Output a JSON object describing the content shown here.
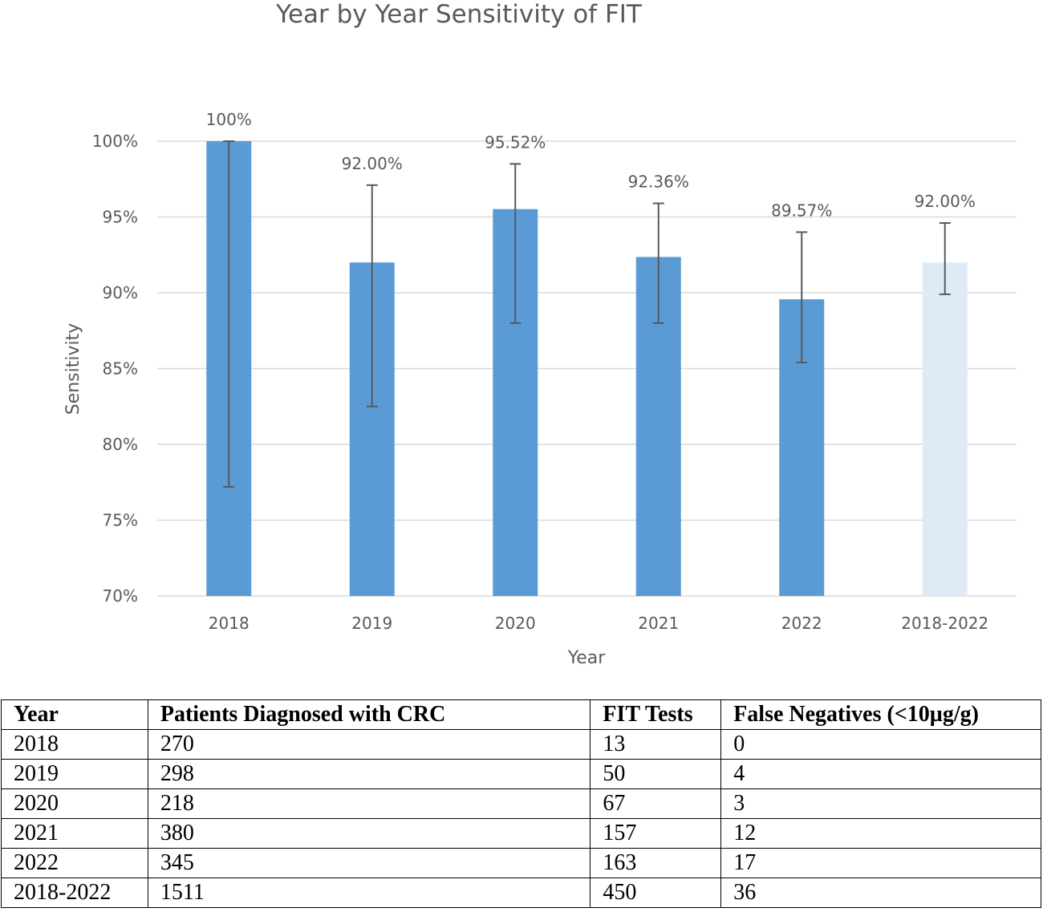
{
  "chart_data": {
    "type": "bar",
    "title": "Year by Year Sensitivity of FIT",
    "xlabel": "Year",
    "ylabel": "Sensitivity",
    "ylim": [
      70,
      100
    ],
    "yticks": [
      70,
      75,
      80,
      85,
      90,
      95,
      100
    ],
    "ytick_labels": [
      "70%",
      "75%",
      "80%",
      "85%",
      "90%",
      "95%",
      "100%"
    ],
    "grid": true,
    "categories": [
      "2018",
      "2019",
      "2020",
      "2021",
      "2022",
      "2018-2022"
    ],
    "values": [
      100,
      92.0,
      95.52,
      92.36,
      89.57,
      92.0
    ],
    "data_labels": [
      "100%",
      "92.00%",
      "95.52%",
      "92.36%",
      "89.57%",
      "92.00%"
    ],
    "error_low": [
      77.2,
      82.5,
      88.0,
      88.0,
      85.4,
      89.9
    ],
    "error_high": [
      100,
      97.1,
      98.5,
      95.9,
      94.0,
      94.6
    ],
    "bar_colors": [
      "#5b9bd5",
      "#5b9bd5",
      "#5b9bd5",
      "#5b9bd5",
      "#5b9bd5",
      "#deebf7"
    ]
  },
  "table": {
    "headers": [
      "Year",
      "Patients Diagnosed with CRC",
      "FIT Tests",
      "False Negatives (<10µg/g)"
    ],
    "rows": [
      [
        "2018",
        "270",
        "13",
        "0"
      ],
      [
        "2019",
        "298",
        "50",
        "4"
      ],
      [
        "2020",
        "218",
        "67",
        "3"
      ],
      [
        "2021",
        "380",
        "157",
        "12"
      ],
      [
        "2022",
        "345",
        "163",
        "17"
      ],
      [
        "2018-2022",
        "1511",
        "450",
        "36"
      ]
    ]
  }
}
